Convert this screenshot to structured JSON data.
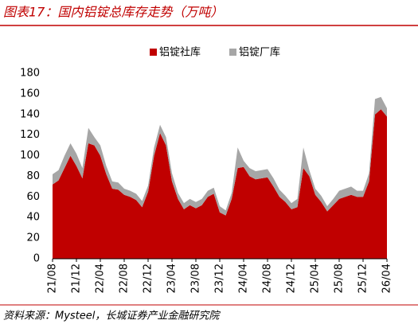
{
  "chart_data": {
    "type": "stacked_area",
    "title": "图表17：国内铝锭总库存走势（万吨）",
    "source": "资料来源：Mysteel，长城证券产业金融研究院",
    "categories": [
      "21/08",
      null,
      null,
      null,
      "21/12",
      null,
      null,
      null,
      "22/04",
      null,
      null,
      null,
      "22/08",
      null,
      null,
      null,
      "22/12",
      null,
      null,
      null,
      "23/04",
      null,
      null,
      null,
      "23/08",
      null,
      null,
      null,
      "23/12",
      null,
      null,
      null,
      "24/04",
      null,
      null,
      null,
      "24/08",
      null,
      null,
      null,
      "24/12",
      null,
      null,
      null,
      "25/04",
      null,
      null,
      null,
      "25/08",
      null,
      null,
      null,
      "25/12",
      null,
      null,
      null,
      "26/04"
    ],
    "series": [
      {
        "name": "铝锭社库",
        "color": "#c00000",
        "values": [
          72,
          76,
          88,
          100,
          90,
          78,
          112,
          110,
          100,
          82,
          68,
          67,
          62,
          60,
          57,
          50,
          65,
          100,
          122,
          110,
          75,
          58,
          48,
          52,
          49,
          52,
          60,
          63,
          45,
          42,
          58,
          88,
          89,
          80,
          77,
          78,
          79,
          70,
          60,
          55,
          48,
          50,
          88,
          80,
          62,
          55,
          46,
          52,
          58,
          60,
          62,
          60,
          60,
          75,
          140,
          145,
          138
        ]
      },
      {
        "name": "铝锭厂库",
        "color": "#a6a6a6",
        "values": [
          10,
          10,
          12,
          12,
          12,
          10,
          15,
          8,
          10,
          8,
          7,
          7,
          6,
          6,
          6,
          6,
          6,
          8,
          8,
          8,
          8,
          6,
          6,
          6,
          6,
          6,
          6,
          6,
          6,
          5,
          6,
          20,
          6,
          8,
          8,
          8,
          8,
          8,
          7,
          6,
          6,
          8,
          20,
          6,
          6,
          6,
          5,
          6,
          8,
          8,
          8,
          6,
          6,
          8,
          15,
          12,
          8
        ]
      }
    ],
    "ylim": [
      0,
      180
    ],
    "yticks": [
      0,
      20,
      40,
      60,
      80,
      100,
      120,
      140,
      160,
      180
    ],
    "legend": "top"
  }
}
